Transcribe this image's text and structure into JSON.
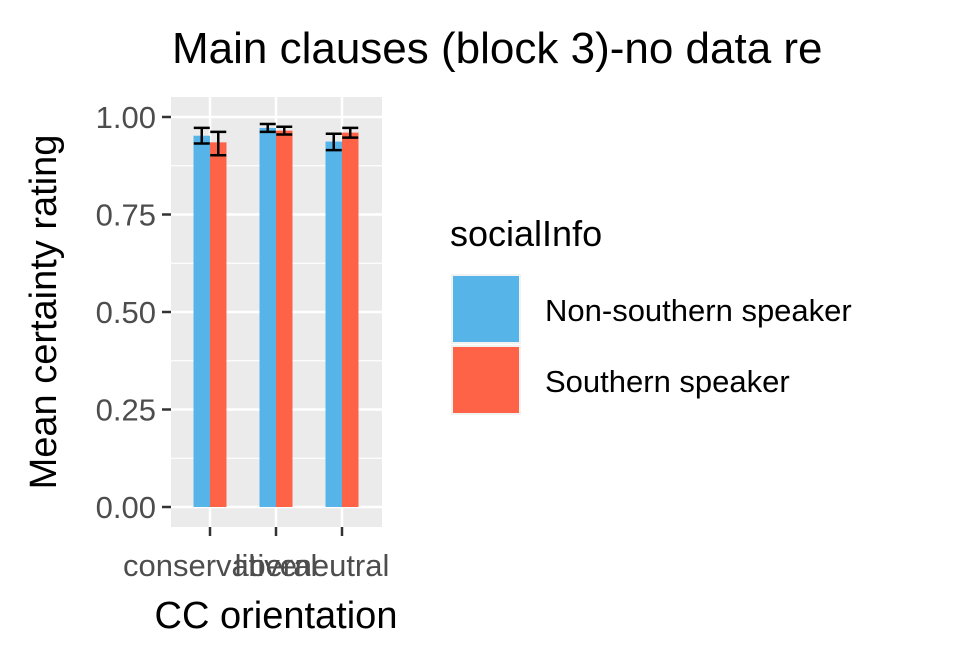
{
  "chart_data": {
    "type": "bar",
    "title": "Main clauses (block 3)-no data re",
    "xlabel": "CC orientation",
    "ylabel": "Mean certainty rating",
    "categories": [
      "conservative",
      "liberal",
      "neutral"
    ],
    "ylim": [
      0,
      1.05
    ],
    "yticks": [
      "0.00",
      "0.25",
      "0.50",
      "0.75",
      "1.00"
    ],
    "ytick_values": [
      0,
      0.25,
      0.5,
      0.75,
      1.0
    ],
    "grid": true,
    "legend": {
      "title": "socialInfo",
      "position": "right"
    },
    "series": [
      {
        "name": "Non-southern speaker",
        "color": "#56B4E9",
        "values": [
          0.952,
          0.972,
          0.937
        ],
        "err_low": [
          0.932,
          0.962,
          0.915
        ],
        "err_high": [
          0.972,
          0.982,
          0.957
        ]
      },
      {
        "name": "Southern speaker",
        "color": "#FF6347",
        "values": [
          0.935,
          0.965,
          0.96
        ],
        "err_low": [
          0.902,
          0.955,
          0.947
        ],
        "err_high": [
          0.962,
          0.975,
          0.972
        ]
      }
    ]
  }
}
